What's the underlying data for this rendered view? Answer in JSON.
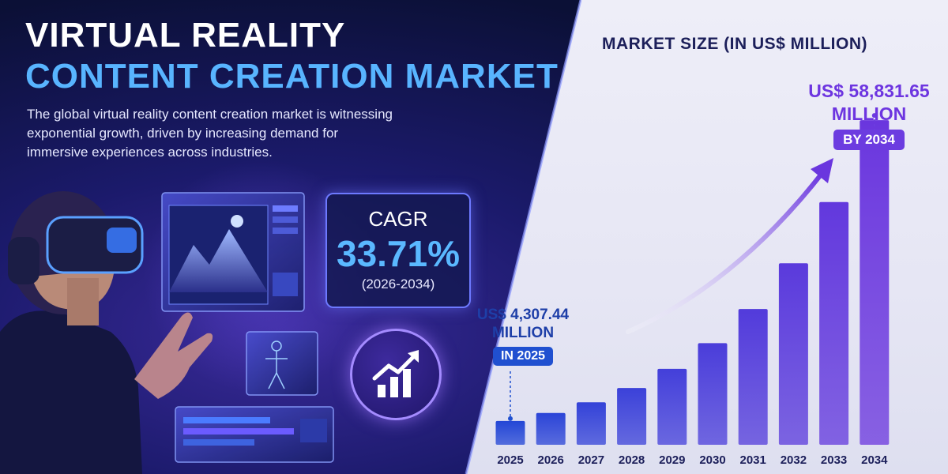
{
  "header": {
    "title_line1": "VIRTUAL REALITY",
    "title_line2": "CONTENT CREATION MARKET",
    "description": "The global virtual reality content creation market is witnessing exponential growth, driven by increasing demand for immersive experiences across industries."
  },
  "cagr": {
    "label": "CAGR",
    "value": "33.71%",
    "period": "(2026-2034)"
  },
  "callouts": {
    "start": {
      "value": "US$ 4,307.44",
      "unit": "MILLION",
      "badge": "IN 2025"
    },
    "end": {
      "value": "US$ 58,831.65",
      "unit": "MILLION",
      "badge": "BY 2034"
    }
  },
  "colors": {
    "blue": "#2346d6",
    "purple": "#6a36de",
    "accent_cyan": "#58b4ff"
  },
  "icons": [
    "vr-headset-icon",
    "growth-chart-icon",
    "trend-arrow-icon"
  ],
  "chart_data": {
    "type": "bar",
    "title": "MARKET SIZE (IN US$ MILLION)",
    "categories": [
      "2025",
      "2026",
      "2027",
      "2028",
      "2029",
      "2030",
      "2031",
      "2032",
      "2033",
      "2034"
    ],
    "values": [
      4307.44,
      5759,
      7700,
      10296,
      13767,
      18407,
      24612,
      32909,
      44001,
      58831.65
    ],
    "ylim": [
      0,
      62000
    ],
    "grid": false,
    "legend": "none"
  }
}
